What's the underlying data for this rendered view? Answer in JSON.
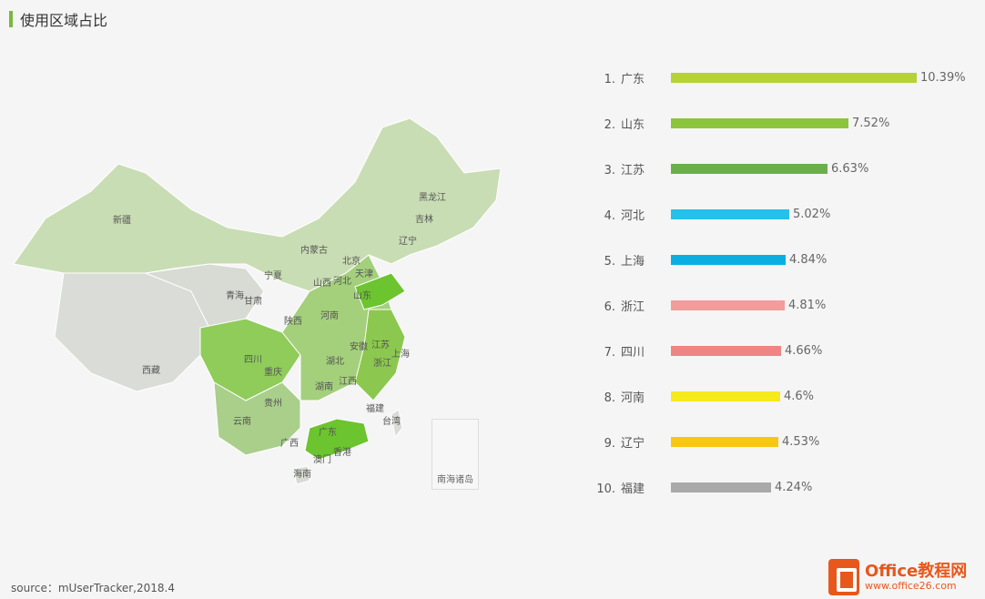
{
  "title": "使用区域占比",
  "source": "source：mUserTracker,2018.4",
  "watermark": {
    "name": "Office教程网",
    "url": "www.office26.com"
  },
  "map": {
    "labels": [
      "新疆",
      "西藏",
      "青海",
      "甘肃",
      "宁夏",
      "内蒙古",
      "黑龙江",
      "吉林",
      "辽宁",
      "北京",
      "天津",
      "河北",
      "山西",
      "陕西",
      "河南",
      "山东",
      "四川",
      "重庆",
      "湖北",
      "安徽",
      "江苏",
      "上海",
      "浙江",
      "湖南",
      "江西",
      "贵州",
      "云南",
      "广西",
      "广东",
      "福建",
      "台湾",
      "香港",
      "澳门",
      "海南"
    ],
    "inset_label": "南海诸岛"
  },
  "chart_data": {
    "type": "bar",
    "orientation": "horizontal",
    "categories": [
      "广东",
      "山东",
      "江苏",
      "河北",
      "上海",
      "浙江",
      "四川",
      "河南",
      "辽宁",
      "福建"
    ],
    "ranks": [
      "1.",
      "2.",
      "3.",
      "4.",
      "5.",
      "6.",
      "7.",
      "8.",
      "9.",
      "10."
    ],
    "values": [
      10.39,
      7.52,
      6.63,
      5.02,
      4.84,
      4.81,
      4.66,
      4.6,
      4.53,
      4.24
    ],
    "value_labels": [
      "10.39%",
      "7.52%",
      "6.63%",
      "5.02%",
      "4.84%",
      "4.81%",
      "4.66%",
      "4.6%",
      "4.53%",
      "4.24%"
    ],
    "colors": [
      "#b5d334",
      "#8cc43c",
      "#6ab04a",
      "#24c1ea",
      "#0aafe2",
      "#f49b9b",
      "#f08383",
      "#f7ea1a",
      "#f8c713",
      "#a9a9a9"
    ],
    "xlim": [
      0,
      10.39
    ]
  }
}
